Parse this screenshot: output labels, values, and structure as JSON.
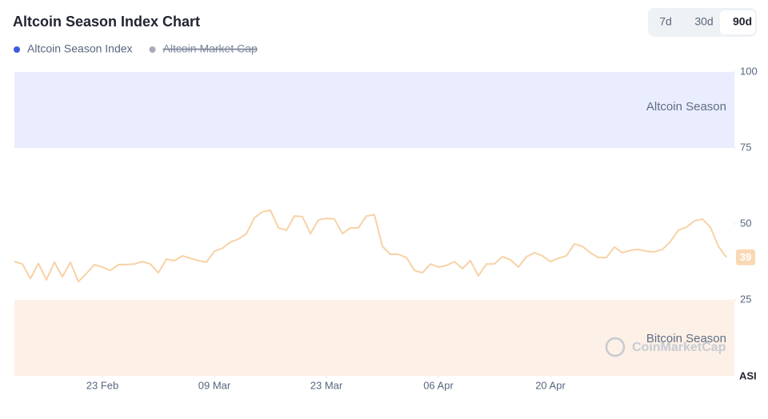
{
  "chart_data": {
    "type": "line",
    "title": "Altcoin Season Index Chart",
    "buttons": [
      "7d",
      "30d",
      "90d"
    ],
    "active_button": "90d",
    "y_axis_label": "ASI",
    "watermark": "CoinMarketCap",
    "bands": [
      {
        "label": "Altcoin Season",
        "range": [
          75,
          100
        ],
        "color": "#eaedfd"
      },
      {
        "label": "Bitcoin Season",
        "range": [
          0,
          25
        ],
        "color": "#fdf0e6"
      }
    ],
    "x": [
      0,
      1,
      2,
      3,
      4,
      5,
      6,
      7,
      8,
      9,
      10,
      11,
      12,
      13,
      14,
      15,
      16,
      17,
      18,
      19,
      20,
      21,
      22,
      23,
      24,
      25,
      26,
      27,
      28,
      29,
      30,
      31,
      32,
      33,
      34,
      35,
      36,
      37,
      38,
      39,
      40,
      41,
      42,
      43,
      44,
      45,
      46,
      47,
      48,
      49,
      50,
      51,
      52,
      53,
      54,
      55,
      56,
      57,
      58,
      59,
      60,
      61,
      62,
      63,
      64,
      65,
      66,
      67,
      68,
      69,
      70,
      71,
      72,
      73,
      74,
      75,
      76,
      77,
      78,
      79,
      80,
      81,
      82,
      83,
      84,
      85,
      86,
      87,
      88,
      89
    ],
    "series": [
      {
        "name": "Altcoin Season Index",
        "color": "#f7d2a6",
        "legend_color": "#3d5ae0",
        "values": [
          37.6,
          36.8,
          32,
          37,
          31.6,
          37.4,
          32.6,
          37.4,
          31,
          33.7,
          36.6,
          35.8,
          34.7,
          36.6,
          36.6,
          36.8,
          37.6,
          36.8,
          33.9,
          38.4,
          37.9,
          39.5,
          38.7,
          37.9,
          37.4,
          41,
          42,
          44,
          45,
          46.8,
          52,
          54,
          54.5,
          48.7,
          47.9,
          52.6,
          52.4,
          46.8,
          51.3,
          51.8,
          51.6,
          46.8,
          48.7,
          48.7,
          52.6,
          53,
          42.6,
          40,
          40,
          38.9,
          34.7,
          33.9,
          36.8,
          35.8,
          36.3,
          37.6,
          35.3,
          37.9,
          32.9,
          36.8,
          36.8,
          39.2,
          38.2,
          35.8,
          39.2,
          40.5,
          39.5,
          37.6,
          38.7,
          39.5,
          43.4,
          42.6,
          40.5,
          38.9,
          38.9,
          42.4,
          40.5,
          41.3,
          41.6,
          41,
          40.8,
          41.6,
          44.2,
          47.9,
          48.9,
          51,
          51.6,
          48.9,
          42.6,
          39
        ]
      },
      {
        "name": "Altcoin Market Cap",
        "color": "#a9abb8",
        "hidden": true
      }
    ],
    "xlim": [
      0,
      90
    ],
    "xticks": [
      {
        "value": 11,
        "label": "23 Feb"
      },
      {
        "value": 25,
        "label": "09 Mar"
      },
      {
        "value": 39,
        "label": "23 Mar"
      },
      {
        "value": 53,
        "label": "06 Apr"
      },
      {
        "value": 67,
        "label": "20 Apr"
      }
    ],
    "ylim": [
      0,
      100
    ],
    "yticks": [
      25,
      50,
      75,
      100
    ],
    "badge_color": "#f9d9b5"
  }
}
